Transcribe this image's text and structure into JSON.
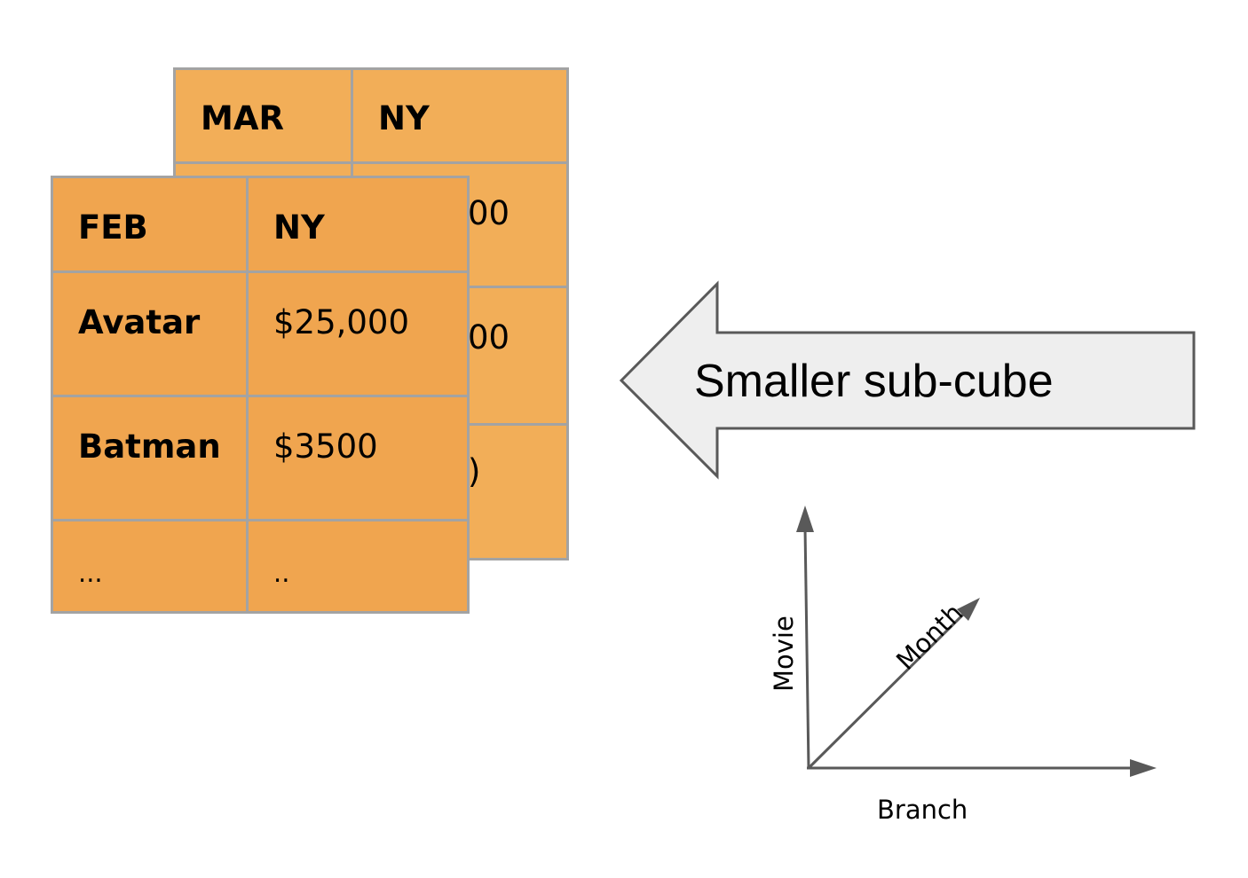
{
  "back_table": {
    "header": [
      "MAR",
      "NY"
    ],
    "partial_values": [
      "00",
      "00",
      ")"
    ]
  },
  "front_table": {
    "header": [
      "FEB",
      "NY"
    ],
    "rows": [
      {
        "movie": "Avatar",
        "value": "$25,000"
      },
      {
        "movie": "Batman",
        "value": "$3500"
      },
      {
        "movie": "...",
        "value": ".."
      }
    ]
  },
  "arrow": {
    "label": "Smaller sub-cube",
    "fill": "#eeeeee",
    "stroke": "#595959"
  },
  "axes": {
    "vertical": "Movie",
    "diagonal": "Month",
    "horizontal": "Branch",
    "color": "#595959"
  },
  "colors": {
    "cell_back": "#f2ae58",
    "cell_front": "#f0a54f",
    "cell_border": "#a3a3a3"
  }
}
